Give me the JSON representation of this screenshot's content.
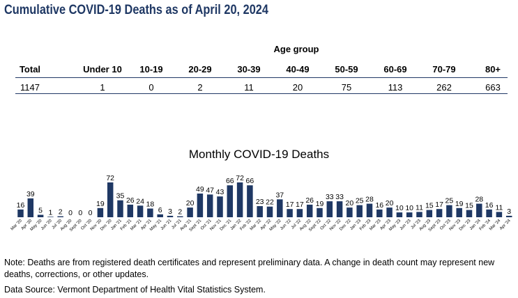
{
  "title": "Cumulative COVID-19 Deaths as of April 20, 2024",
  "age_table": {
    "caption": "Age group",
    "headers": [
      "Total",
      "Under 10",
      "10-19",
      "20-29",
      "30-39",
      "40-49",
      "50-59",
      "60-69",
      "70-79",
      "80+"
    ],
    "values": [
      "1147",
      "1",
      "0",
      "2",
      "11",
      "20",
      "75",
      "113",
      "262",
      "663"
    ]
  },
  "colors": {
    "title": "#1f3864",
    "bar": "#1f3864",
    "rule": "#1f3864"
  },
  "chart_data": {
    "type": "bar",
    "title": "Monthly COVID-19 Deaths",
    "categories": [
      "Mar '20",
      "Apr '20",
      "May '20",
      "Jun '20",
      "Jul '20",
      "Aug '20",
      "Sept '20",
      "Oct '20",
      "Nov '20",
      "Dec '20",
      "Jan '21",
      "Feb '21",
      "Mar '21",
      "Apr '21",
      "May '21",
      "Jun '21",
      "Jul '21",
      "Aug '21",
      "Sept '21",
      "Oct '21",
      "Nov '21",
      "Dec '21",
      "Jan '22",
      "Feb '22",
      "Mar '22",
      "Apr '22",
      "May '22",
      "Jun '22",
      "Jul '22",
      "Aug '22",
      "Sept '22",
      "Oct '22",
      "Nov '22",
      "Dec '22",
      "Jan '23",
      "Feb '23",
      "Mar '23",
      "Apr '23",
      "May '23",
      "Jun '23",
      "Jul '23",
      "Aug '23",
      "Sept '23",
      "Oct '23",
      "Nov '23",
      "Dec '23",
      "Jan '24",
      "Feb '24",
      "Mar '24",
      "Apr '24"
    ],
    "values": [
      16,
      39,
      5,
      1,
      2,
      0,
      0,
      0,
      19,
      72,
      35,
      26,
      24,
      18,
      6,
      3,
      2,
      20,
      49,
      47,
      43,
      66,
      72,
      66,
      23,
      22,
      37,
      17,
      17,
      26,
      19,
      33,
      33,
      20,
      25,
      28,
      16,
      20,
      10,
      10,
      11,
      15,
      17,
      25,
      19,
      15,
      28,
      16,
      11,
      3
    ],
    "ylim": [
      0,
      72
    ]
  },
  "note": "Note: Deaths are from registered death certificates and represent preliminary data. A change in death count may represent new deaths, corrections, or other updates.",
  "source": "Data Source: Vermont Department of Health Vital Statistics System."
}
